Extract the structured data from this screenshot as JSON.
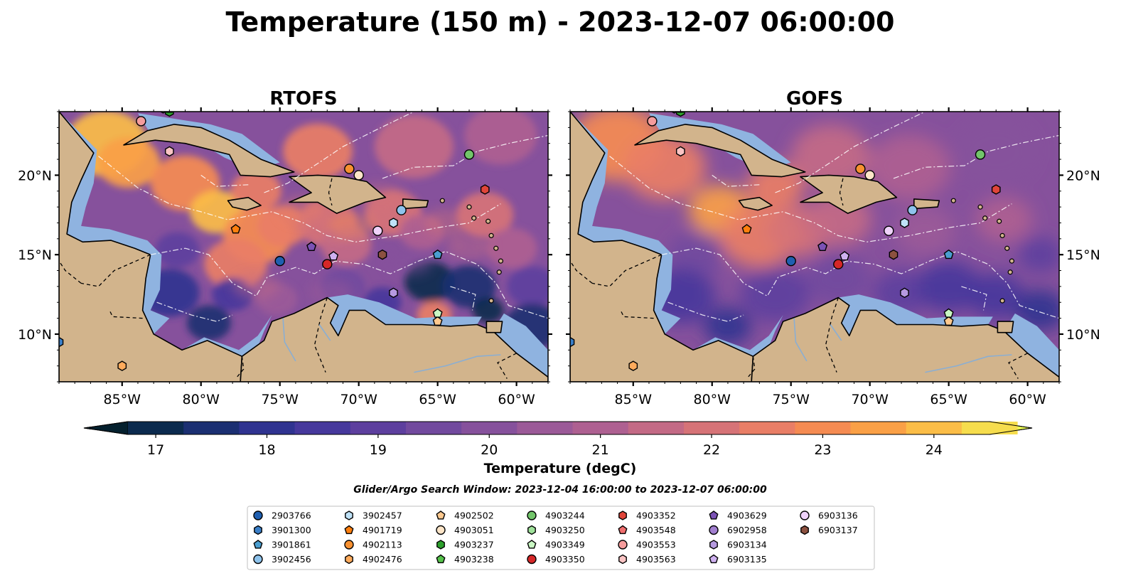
{
  "figure": {
    "title": "Temperature (150 m) - 2023-12-07 06:00:00",
    "subtitle": "Glider/Argo Search Window: 2023-12-04 16:00:00 to 2023-12-07 06:00:00"
  },
  "panels": [
    {
      "title": "RTOFS",
      "style": "eddy"
    },
    {
      "title": "GOFS",
      "style": "smooth"
    }
  ],
  "map_extent": {
    "lon": [
      -89,
      -58
    ],
    "lat": [
      7,
      24
    ]
  },
  "axes": {
    "lon_ticks": [
      {
        "value": -85,
        "label": "85°W"
      },
      {
        "value": -80,
        "label": "80°W"
      },
      {
        "value": -75,
        "label": "75°W"
      },
      {
        "value": -70,
        "label": "70°W"
      },
      {
        "value": -65,
        "label": "65°W"
      },
      {
        "value": -60,
        "label": "60°W"
      }
    ],
    "lat_ticks": [
      {
        "value": 10,
        "label": "10°N"
      },
      {
        "value": 15,
        "label": "15°N"
      },
      {
        "value": 20,
        "label": "20°N"
      }
    ]
  },
  "colorbar": {
    "label": "Temperature (degC)",
    "min": 16.75,
    "max": 24.5,
    "step": 0.5,
    "ticks": [
      17,
      18,
      19,
      20,
      21,
      22,
      23,
      24
    ],
    "colors": [
      "#04202e",
      "#0b2a4e",
      "#1b2f72",
      "#2f3390",
      "#46389c",
      "#5d3f9e",
      "#724a9e",
      "#86519c",
      "#9b5a98",
      "#ae6091",
      "#c36a85",
      "#d67377",
      "#e97e66",
      "#f58b52",
      "#faa046",
      "#fbbd47",
      "#f6dd4d",
      "#e8f953"
    ],
    "land": "#d2b48c",
    "shallow": "#8fb3e0",
    "deep_pacific": "#04202e"
  },
  "markers": [
    {
      "id": "2903766",
      "shape": "circle",
      "color": "#1f5fb0",
      "lon": -75.0,
      "lat": 14.6
    },
    {
      "id": "3901300",
      "shape": "hexagon",
      "color": "#3a7fc8",
      "lon": -89.0,
      "lat": 9.5
    },
    {
      "id": "3901861",
      "shape": "pentagon",
      "color": "#4a9ed0",
      "lon": -65.0,
      "lat": 15.0
    },
    {
      "id": "3902456",
      "shape": "circle",
      "color": "#8ec3ec",
      "lon": -67.3,
      "lat": 17.8
    },
    {
      "id": "3902457",
      "shape": "hexagon",
      "color": "#bfe2f7",
      "lon": -67.8,
      "lat": 17.0
    },
    {
      "id": "4901719",
      "shape": "pentagon",
      "color": "#ff7f0e",
      "lon": -77.8,
      "lat": 16.6
    },
    {
      "id": "4902113",
      "shape": "circle",
      "color": "#f79030",
      "lon": -70.6,
      "lat": 20.4
    },
    {
      "id": "4902476",
      "shape": "hexagon",
      "color": "#ffab5c",
      "lon": -85.0,
      "lat": 8.0
    },
    {
      "id": "4902502",
      "shape": "pentagon",
      "color": "#ffc98f",
      "lon": -65.0,
      "lat": 10.8
    },
    {
      "id": "4903051",
      "shape": "circle",
      "color": "#fde5c8",
      "lon": -70.0,
      "lat": 20.0
    },
    {
      "id": "4903237",
      "shape": "hexagon",
      "color": "#2ca02c",
      "lon": -82.0,
      "lat": 24.0
    },
    {
      "id": "4903238",
      "shape": "pentagon",
      "color": "#55c24a",
      "lon": -82.0,
      "lat": 24.2
    },
    {
      "id": "4903244",
      "shape": "circle",
      "color": "#72c56a",
      "lon": -63.0,
      "lat": 21.3
    },
    {
      "id": "4903250",
      "shape": "hexagon",
      "color": "#9fe19a",
      "lon": -82.4,
      "lat": 24.2
    },
    {
      "id": "4903349",
      "shape": "pentagon",
      "color": "#c9f7c3",
      "lon": -65.0,
      "lat": 11.3
    },
    {
      "id": "4903350",
      "shape": "circle",
      "color": "#d62728",
      "lon": -72.0,
      "lat": 14.4
    },
    {
      "id": "4903352",
      "shape": "hexagon",
      "color": "#e0453a",
      "lon": -62.0,
      "lat": 19.1
    },
    {
      "id": "4903548",
      "shape": "pentagon",
      "color": "#f06e6e",
      "lon": -82.0,
      "lat": 24.3
    },
    {
      "id": "4903553",
      "shape": "circle",
      "color": "#f59c9c",
      "lon": -83.8,
      "lat": 23.4
    },
    {
      "id": "4903563",
      "shape": "hexagon",
      "color": "#fbc4c4",
      "lon": -82.0,
      "lat": 21.5
    },
    {
      "id": "4903629",
      "shape": "pentagon",
      "color": "#7b52b5",
      "lon": -73.0,
      "lat": 15.5
    },
    {
      "id": "6902958",
      "shape": "circle",
      "color": "#a27fd0",
      "lon": -75.5,
      "lat": 24.3
    },
    {
      "id": "6903134",
      "shape": "hexagon",
      "color": "#b69ae0",
      "lon": -67.8,
      "lat": 12.6
    },
    {
      "id": "6903135",
      "shape": "pentagon",
      "color": "#cfb1f0",
      "lon": -71.6,
      "lat": 14.9
    },
    {
      "id": "6903136",
      "shape": "circle",
      "color": "#efd2fb",
      "lon": -68.8,
      "lat": 16.5
    },
    {
      "id": "6903137",
      "shape": "hexagon",
      "color": "#8c5140",
      "lon": -68.5,
      "lat": 15.0
    }
  ]
}
